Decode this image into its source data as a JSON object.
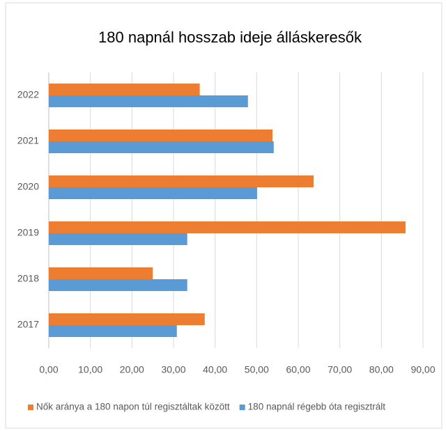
{
  "chart_data": {
    "type": "hbar",
    "title": "180 napnál hosszab ideje álláskeresők",
    "categories": [
      "2017",
      "2018",
      "2019",
      "2020",
      "2021",
      "2022"
    ],
    "series": [
      {
        "name": "Nők aránya a 180 napon túl regisztáltak között",
        "color": "#ed7d31",
        "values": [
          37.5,
          25.0,
          85.8,
          63.7,
          53.8,
          36.3
        ]
      },
      {
        "name": "180 napnál régebb óta regisztrált",
        "color": "#5b9bd5",
        "values": [
          30.8,
          33.3,
          33.3,
          50.1,
          54.1,
          47.9
        ]
      }
    ],
    "xlim": [
      0,
      90
    ],
    "xticks": [
      {
        "value": 0,
        "label": "0,00"
      },
      {
        "value": 10,
        "label": "10,00"
      },
      {
        "value": 20,
        "label": "20,00"
      },
      {
        "value": 30,
        "label": "30,00"
      },
      {
        "value": 40,
        "label": "40,00"
      },
      {
        "value": 50,
        "label": "50,00"
      },
      {
        "value": 60,
        "label": "60,00"
      },
      {
        "value": 70,
        "label": "70,00"
      },
      {
        "value": 80,
        "label": "80,00"
      },
      {
        "value": 90,
        "label": "90,00"
      }
    ],
    "grid": true,
    "legend": "bottom"
  }
}
